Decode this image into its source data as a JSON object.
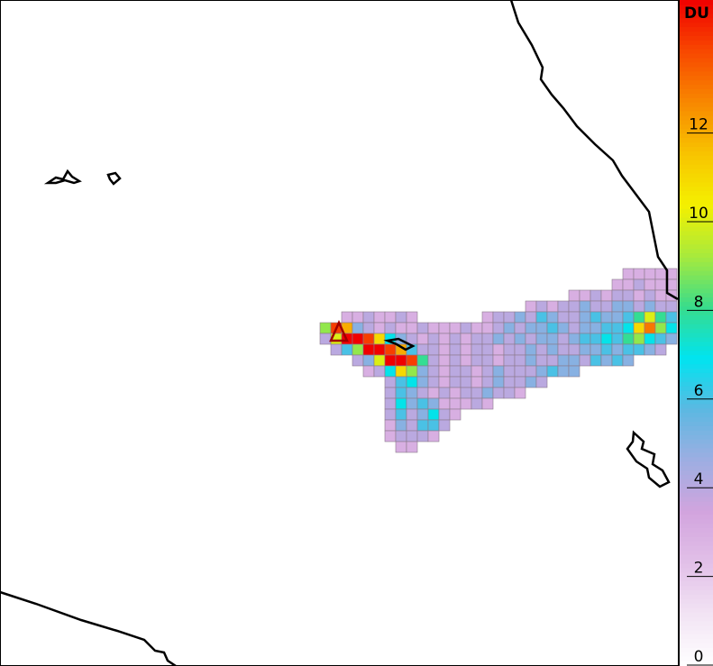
{
  "colorbar": {
    "title": "DU",
    "clim": [
      0,
      15
    ],
    "ticks": [
      0,
      2,
      4,
      6,
      8,
      10,
      12
    ],
    "colormap": [
      "#ffffff",
      "#f2e4f4",
      "#e2c0e8",
      "#d2a4de",
      "#9eaee2",
      "#5cb8e2",
      "#00e4f0",
      "#38dc8c",
      "#a8ea3c",
      "#f4f000",
      "#f8c400",
      "#f88800",
      "#f84800",
      "#f00000"
    ]
  },
  "plume": {
    "rows": [
      [
        null,
        null,
        null,
        null,
        null,
        null,
        null,
        null,
        null,
        null,
        null,
        null,
        null,
        null,
        null,
        null,
        null,
        null,
        null,
        null,
        null,
        null,
        null,
        null,
        null,
        null,
        null,
        null,
        3,
        3,
        3,
        3,
        3
      ],
      [
        null,
        null,
        null,
        null,
        null,
        null,
        null,
        null,
        null,
        null,
        null,
        null,
        null,
        null,
        null,
        null,
        null,
        null,
        null,
        null,
        null,
        null,
        null,
        null,
        null,
        null,
        null,
        3,
        3,
        4,
        3,
        3,
        3
      ],
      [
        null,
        null,
        null,
        null,
        null,
        null,
        null,
        null,
        null,
        null,
        null,
        null,
        null,
        null,
        null,
        null,
        null,
        null,
        null,
        null,
        null,
        null,
        null,
        3,
        3,
        4,
        3,
        4,
        4,
        3,
        4,
        3,
        3
      ],
      [
        null,
        null,
        null,
        null,
        null,
        null,
        null,
        null,
        null,
        null,
        null,
        null,
        null,
        null,
        null,
        null,
        null,
        null,
        null,
        3,
        4,
        3,
        4,
        4,
        5,
        4,
        4,
        5,
        5,
        4,
        5,
        4,
        4
      ],
      [
        null,
        null,
        3,
        3,
        4,
        3,
        3,
        4,
        3,
        null,
        null,
        null,
        null,
        null,
        null,
        3,
        4,
        4,
        5,
        4,
        6,
        5,
        4,
        4,
        5,
        6,
        5,
        5,
        6,
        8,
        10,
        8,
        6
      ],
      [
        9,
        14,
        12,
        5,
        4,
        3,
        4,
        3,
        3,
        4,
        3,
        3,
        3,
        4,
        3,
        3,
        4,
        5,
        4,
        5,
        5,
        6,
        5,
        4,
        5,
        5,
        6,
        6,
        7,
        11,
        13,
        9,
        7
      ],
      [
        4,
        10,
        15,
        15,
        14,
        11,
        7,
        5,
        4,
        3,
        4,
        3,
        4,
        3,
        4,
        4,
        5,
        4,
        5,
        4,
        5,
        5,
        4,
        5,
        6,
        6,
        7,
        6,
        8,
        9,
        7,
        6,
        5
      ],
      [
        null,
        4,
        6,
        9,
        15,
        15,
        14,
        12,
        6,
        4,
        4,
        3,
        4,
        3,
        4,
        4,
        3,
        4,
        4,
        5,
        4,
        5,
        4,
        4,
        5,
        5,
        6,
        5,
        6,
        6,
        5,
        4,
        null
      ],
      [
        null,
        null,
        null,
        4,
        5,
        10,
        15,
        15,
        14,
        8,
        4,
        3,
        4,
        3,
        4,
        4,
        3,
        4,
        4,
        5,
        4,
        4,
        5,
        5,
        4,
        6,
        5,
        6,
        5,
        null,
        null,
        null,
        null
      ],
      [
        null,
        null,
        null,
        null,
        3,
        4,
        7,
        11,
        9,
        5,
        4,
        3,
        4,
        4,
        3,
        4,
        5,
        4,
        4,
        4,
        5,
        6,
        5,
        5,
        null,
        null,
        null,
        null,
        null,
        null,
        null,
        null,
        null
      ],
      [
        null,
        null,
        null,
        null,
        null,
        null,
        4,
        6,
        7,
        5,
        4,
        3,
        4,
        4,
        3,
        4,
        5,
        4,
        4,
        5,
        4,
        null,
        null,
        null,
        null,
        null,
        null,
        null,
        null,
        null,
        null,
        null,
        null
      ],
      [
        null,
        null,
        null,
        null,
        null,
        null,
        4,
        6,
        5,
        4,
        3,
        4,
        3,
        4,
        4,
        5,
        4,
        4,
        3,
        null,
        null,
        null,
        null,
        null,
        null,
        null,
        null,
        null,
        null,
        null,
        null,
        null,
        null
      ],
      [
        null,
        null,
        null,
        null,
        null,
        null,
        4,
        7,
        5,
        6,
        5,
        3,
        3,
        3,
        4,
        3,
        null,
        null,
        null,
        null,
        null,
        null,
        null,
        null,
        null,
        null,
        null,
        null,
        null,
        null,
        null,
        null,
        null
      ],
      [
        null,
        null,
        null,
        null,
        null,
        null,
        4,
        6,
        4,
        5,
        7,
        4,
        3,
        null,
        null,
        null,
        null,
        null,
        null,
        null,
        null,
        null,
        null,
        null,
        null,
        null,
        null,
        null,
        null,
        null,
        null,
        null,
        null
      ],
      [
        null,
        null,
        null,
        null,
        null,
        null,
        3,
        5,
        4,
        6,
        6,
        4,
        null,
        null,
        null,
        null,
        null,
        null,
        null,
        null,
        null,
        null,
        null,
        null,
        null,
        null,
        null,
        null,
        null,
        null,
        null,
        null,
        null
      ],
      [
        null,
        null,
        null,
        null,
        null,
        null,
        3,
        4,
        4,
        4,
        3,
        null,
        null,
        null,
        null,
        null,
        null,
        null,
        null,
        null,
        null,
        null,
        null,
        null,
        null,
        null,
        null,
        null,
        null,
        null,
        null,
        null,
        null
      ],
      [
        null,
        null,
        null,
        null,
        null,
        null,
        null,
        3,
        3,
        null,
        null,
        null,
        null,
        null,
        null,
        null,
        null,
        null,
        null,
        null,
        null,
        null,
        null,
        null,
        null,
        null,
        null,
        null,
        null,
        null,
        null,
        null,
        null
      ]
    ]
  }
}
